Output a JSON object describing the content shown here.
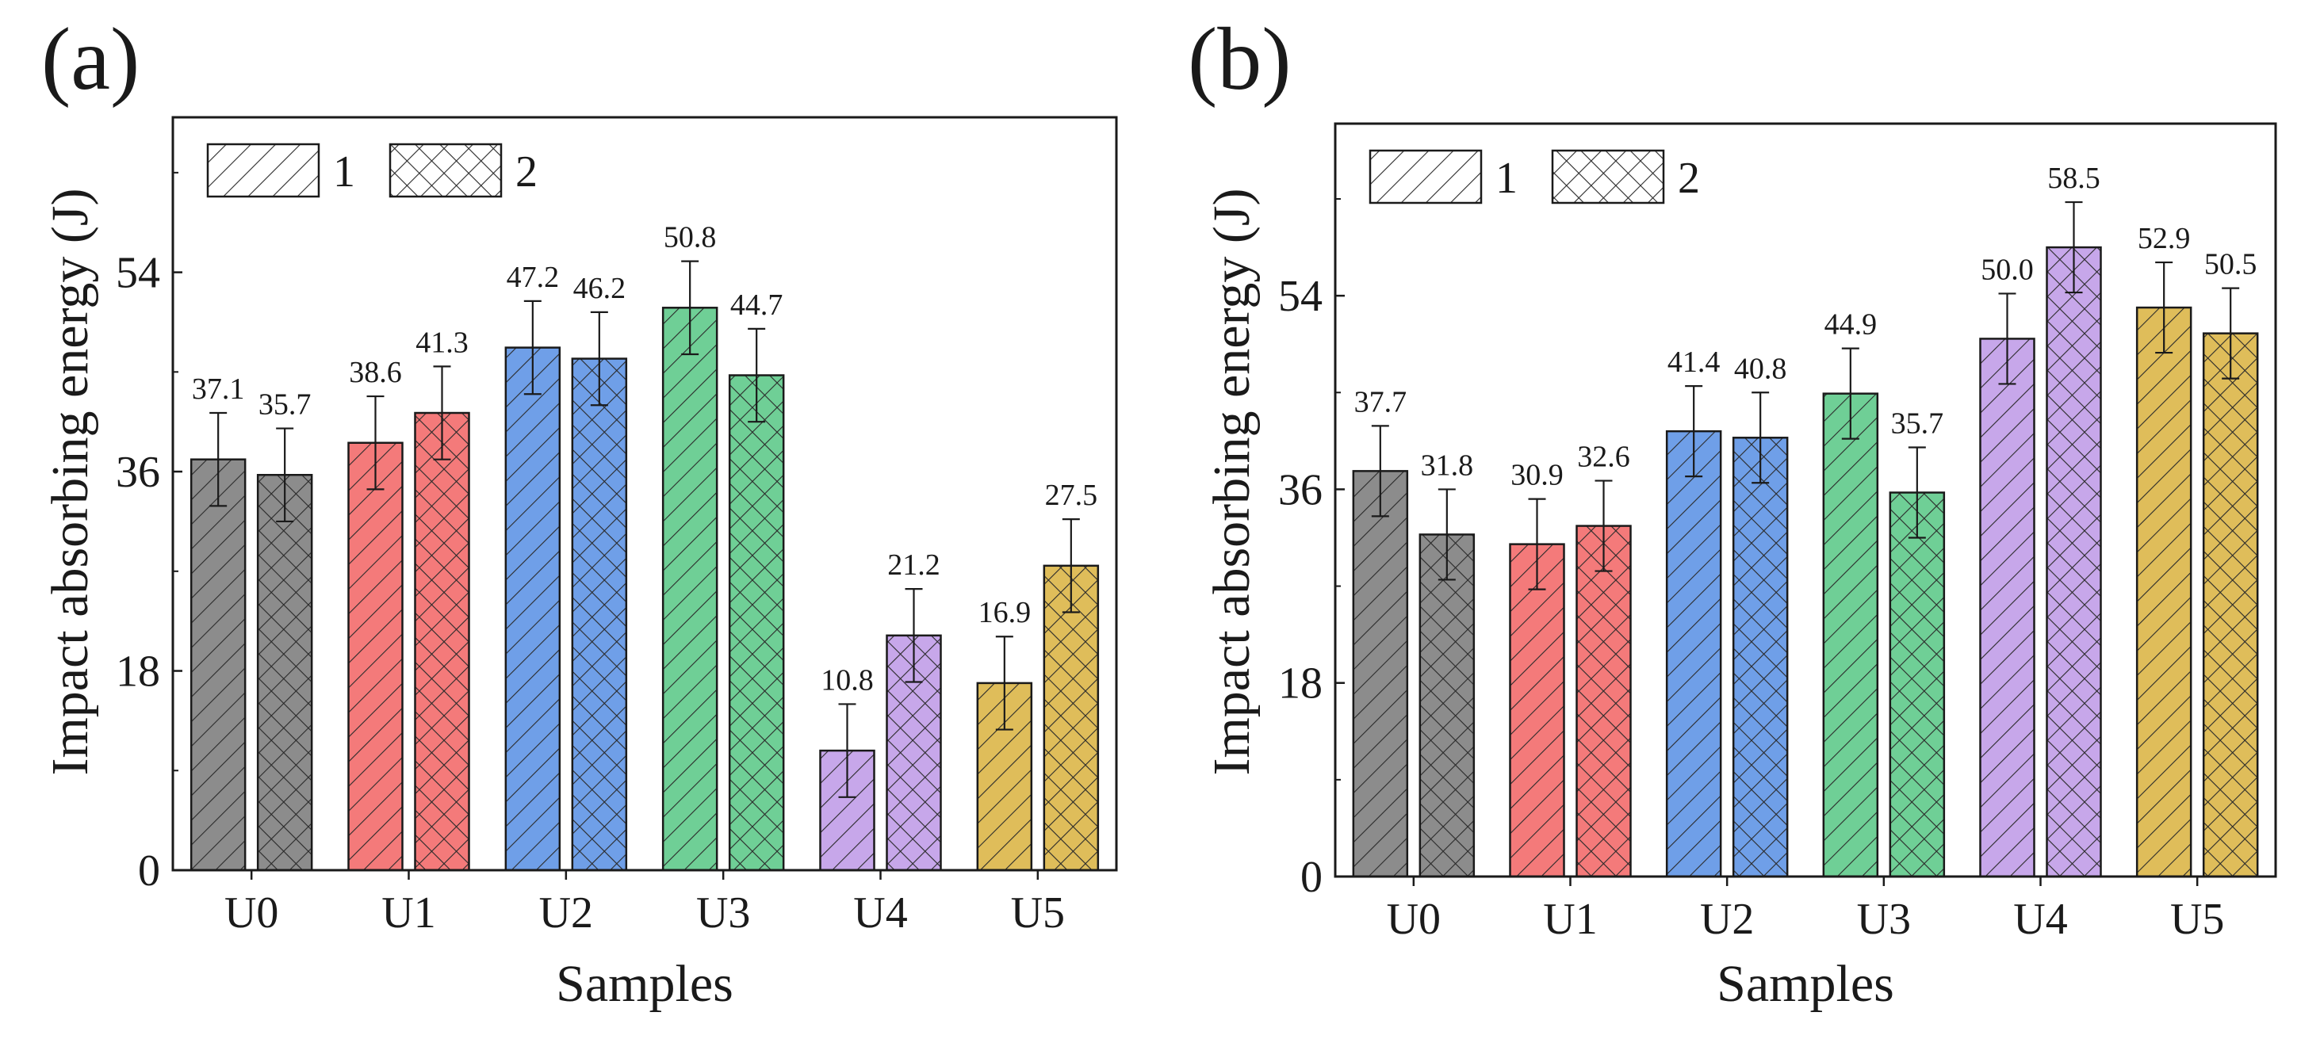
{
  "chart_data": [
    {
      "panel": "(a)",
      "type": "bar",
      "xlabel": "Samples",
      "ylabel": "Impact absorbing energy (J)",
      "categories": [
        "U0",
        "U1",
        "U2",
        "U3",
        "U4",
        "U5"
      ],
      "series": [
        {
          "name": "1",
          "pattern": "diagonal",
          "values": [
            37.1,
            38.6,
            47.2,
            50.8,
            10.8,
            16.9
          ],
          "value_labels": [
            "37.1",
            "38.6",
            "47.2",
            "50.8",
            "10.8",
            "16.9"
          ],
          "errors": [
            4.2,
            4.2,
            4.2,
            4.2,
            4.2,
            4.2
          ]
        },
        {
          "name": "2",
          "pattern": "crosshatch",
          "values": [
            35.7,
            41.3,
            46.2,
            44.7,
            21.2,
            27.5
          ],
          "value_labels": [
            "35.7",
            "41.3",
            "46.2",
            "44.7",
            "21.2",
            "27.5"
          ],
          "errors": [
            4.2,
            4.2,
            4.2,
            4.2,
            4.2,
            4.2
          ]
        }
      ],
      "category_colors": [
        "#8c8c8c",
        "#f47a7a",
        "#6f9fe8",
        "#6fcf96",
        "#c7a7ea",
        "#dfbd5a"
      ],
      "yticks": [
        "0",
        "18",
        "36",
        "54"
      ],
      "ylim": [
        0,
        68
      ],
      "legend": {
        "position": "top-left",
        "labels": [
          "1",
          "2"
        ]
      }
    },
    {
      "panel": "(b)",
      "type": "bar",
      "xlabel": "Samples",
      "ylabel": "Impact absorbing energy (J)",
      "categories": [
        "U0",
        "U1",
        "U2",
        "U3",
        "U4",
        "U5"
      ],
      "series": [
        {
          "name": "1",
          "pattern": "diagonal",
          "values": [
            37.7,
            30.9,
            41.4,
            44.9,
            50.0,
            52.9
          ],
          "value_labels": [
            "37.7",
            "30.9",
            "41.4",
            "44.9",
            "50.0",
            "52.9"
          ],
          "errors": [
            4.2,
            4.2,
            4.2,
            4.2,
            4.2,
            4.2
          ]
        },
        {
          "name": "2",
          "pattern": "crosshatch",
          "values": [
            31.8,
            32.6,
            40.8,
            35.7,
            58.5,
            50.5
          ],
          "value_labels": [
            "31.8",
            "32.6",
            "40.8",
            "35.7",
            "58.5",
            "50.5"
          ],
          "errors": [
            4.2,
            4.2,
            4.2,
            4.2,
            4.2,
            4.2
          ]
        }
      ],
      "category_colors": [
        "#8c8c8c",
        "#f47a7a",
        "#6f9fe8",
        "#6fcf96",
        "#c7a7ea",
        "#dfbd5a"
      ],
      "yticks": [
        "0",
        "18",
        "36",
        "54"
      ],
      "ylim": [
        0,
        70
      ],
      "legend": {
        "position": "top-left",
        "labels": [
          "1",
          "2"
        ]
      }
    }
  ]
}
